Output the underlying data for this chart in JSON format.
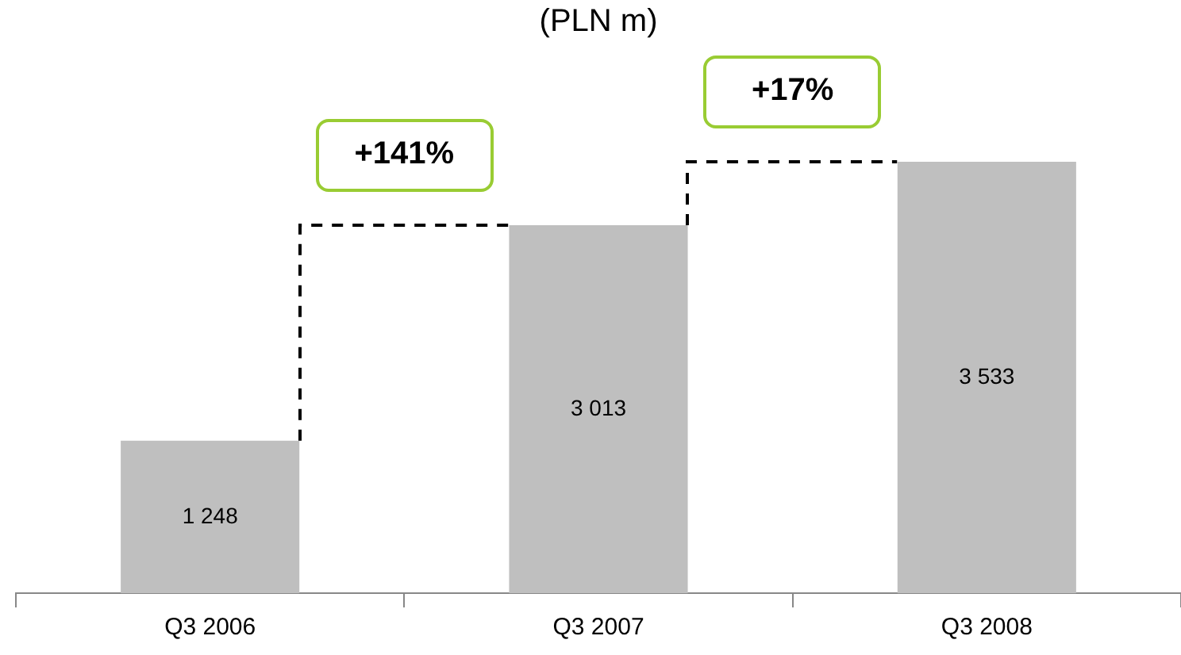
{
  "chart_data": {
    "type": "bar",
    "title": "(PLN m)",
    "categories": [
      "Q3 2006",
      "Q3 2007",
      "Q3 2008"
    ],
    "values": [
      1248,
      3013,
      3533
    ],
    "value_labels": [
      "1 248",
      "3 013",
      "3 533"
    ],
    "color": "#bfbfbf",
    "annotations": [
      "+141%",
      "+17%"
    ],
    "grid": false,
    "legend": false
  }
}
